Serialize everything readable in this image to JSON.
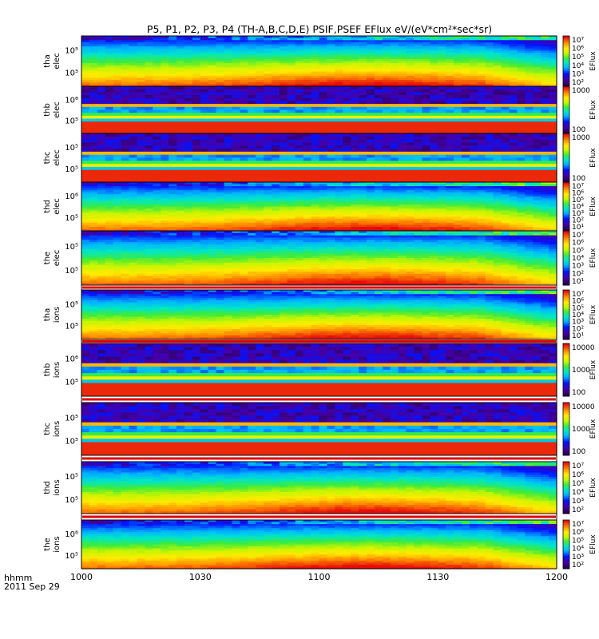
{
  "chart_data": {
    "type": "heatmap",
    "title": "P5, P1, P2, P3, P4 (TH-A,B,C,D,E) PSIF,PSEF EFlux eV/(eV*cm²*sec*sr)",
    "x_tick_labels": [
      "1000",
      "1030",
      "1100",
      "1130",
      "1200"
    ],
    "x_range": [
      "10:00",
      "12:00"
    ],
    "x_header": "hhmm",
    "date_label": "2011 Sep 29",
    "colorbar_label": "EFlux",
    "panels": [
      {
        "probe": "tha",
        "species": "elec",
        "y_ticks": [
          "10⁵",
          "10⁵"
        ],
        "cb_ticks": [
          "10⁷",
          "10⁶",
          "10⁵",
          "10⁴",
          "10³",
          "10²"
        ],
        "cb_range": [
          100,
          10000000
        ],
        "pattern": "full"
      },
      {
        "probe": "thb",
        "species": "elec",
        "y_ticks": [
          "10⁶",
          "10⁵"
        ],
        "cb_ticks": [
          "1000",
          "100"
        ],
        "cb_range": [
          20,
          10000
        ],
        "pattern": "banded"
      },
      {
        "probe": "thc",
        "species": "elec",
        "y_ticks": [
          "10⁵",
          "10⁵"
        ],
        "cb_ticks": [
          "1000",
          "100"
        ],
        "cb_range": [
          20,
          10000
        ],
        "pattern": "banded"
      },
      {
        "probe": "thd",
        "species": "elec",
        "y_ticks": [
          "10⁶",
          "10⁵"
        ],
        "cb_ticks": [
          "10⁷",
          "10⁶",
          "10⁵",
          "10⁴",
          "10³",
          "10²",
          "10¹"
        ],
        "cb_range": [
          10,
          10000000
        ],
        "pattern": "full"
      },
      {
        "probe": "the",
        "species": "elec",
        "y_ticks": [
          "10⁵",
          "10⁵"
        ],
        "cb_ticks": [
          "10⁷",
          "10⁶",
          "10⁵",
          "10⁴",
          "10³",
          "10²",
          "10¹"
        ],
        "cb_range": [
          10,
          10000000
        ],
        "pattern": "full"
      },
      {
        "probe": "tha",
        "species": "ions",
        "y_ticks": [
          "10⁵",
          "10⁵"
        ],
        "cb_ticks": [
          "10⁷",
          "10⁶",
          "10⁵",
          "10⁴",
          "10³",
          "10²",
          "10¹"
        ],
        "cb_range": [
          10,
          10000000
        ],
        "pattern": "full"
      },
      {
        "probe": "thb",
        "species": "ions",
        "y_ticks": [
          "10⁶",
          "10⁵"
        ],
        "cb_ticks": [
          "10000",
          "1000",
          "100"
        ],
        "cb_range": [
          50,
          20000
        ],
        "pattern": "banded"
      },
      {
        "probe": "thc",
        "species": "ions",
        "y_ticks": [
          "10⁵",
          "10⁵"
        ],
        "cb_ticks": [
          "10000",
          "1000",
          "100"
        ],
        "cb_range": [
          50,
          20000
        ],
        "pattern": "banded"
      },
      {
        "probe": "thd",
        "species": "ions",
        "y_ticks": [
          "10⁵",
          "10⁵"
        ],
        "cb_ticks": [
          "10⁷",
          "10⁶",
          "10⁵",
          "10⁴",
          "10³",
          "10²"
        ],
        "cb_range": [
          100,
          10000000
        ],
        "pattern": "full"
      },
      {
        "probe": "the",
        "species": "ions",
        "y_ticks": [
          "10⁶",
          "10⁵"
        ],
        "cb_ticks": [
          "10⁷",
          "10⁶",
          "10⁵",
          "10⁴",
          "10³",
          "10²"
        ],
        "cb_range": [
          100,
          10000000
        ],
        "pattern": "full"
      }
    ]
  }
}
